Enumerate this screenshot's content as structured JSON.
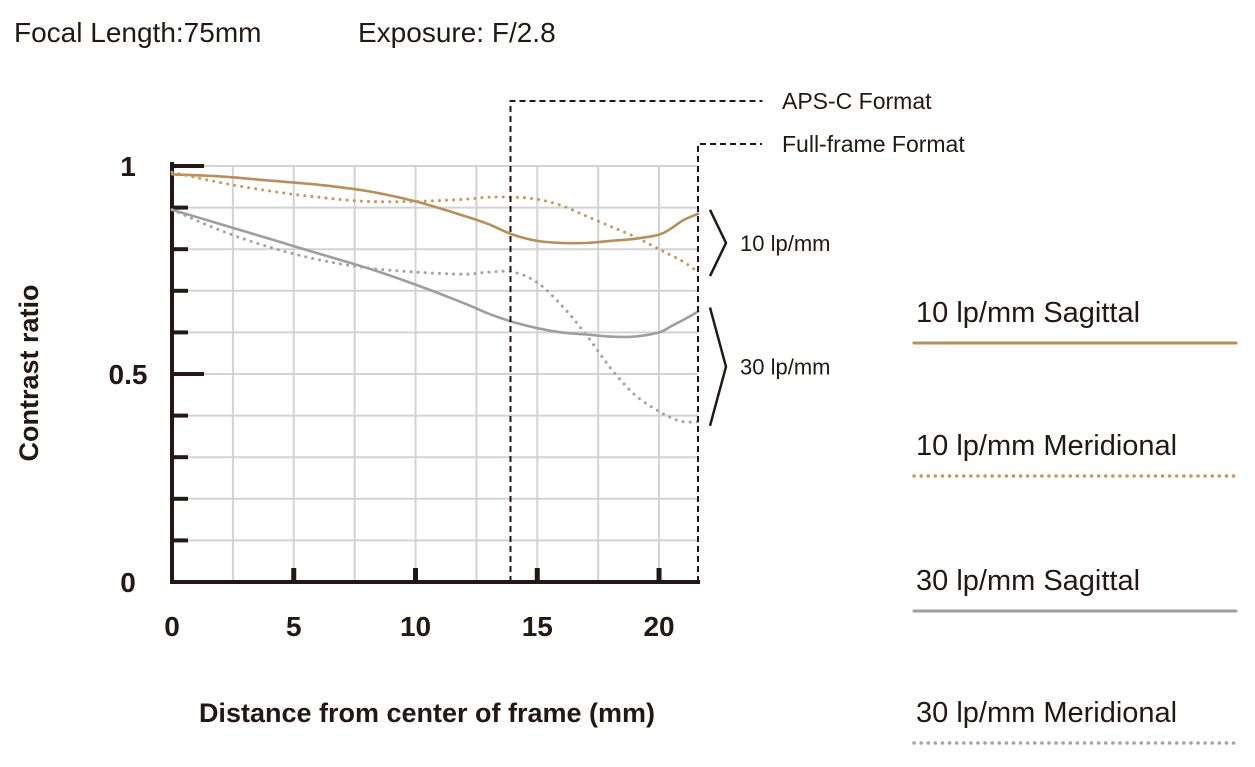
{
  "header": {
    "focal_length": "Focal Length:75mm",
    "exposure": "Exposure: F/2.8"
  },
  "chart_data": {
    "type": "line",
    "xlabel": "Distance from center of frame (mm)",
    "ylabel": "Contrast ratio",
    "xlim": [
      0,
      21.6
    ],
    "ylim": [
      0,
      1
    ],
    "x_ticks": [
      0,
      5,
      10,
      15,
      20
    ],
    "x_tick_labels": [
      "0",
      "5",
      "10",
      "15",
      "20"
    ],
    "y_ticks": [
      0,
      0.5,
      1
    ],
    "y_tick_labels": [
      "0",
      "0.5",
      "1"
    ],
    "grid": true,
    "legend_position": "right",
    "series": [
      {
        "name": "10 lp/mm Sagittal",
        "style": "solid",
        "color": "#b88f5b",
        "x": [
          0,
          2,
          4,
          6,
          8,
          10,
          12,
          13,
          14,
          15,
          16,
          17,
          18,
          19,
          20,
          20.5,
          21,
          21.6
        ],
        "y": [
          0.98,
          0.975,
          0.965,
          0.955,
          0.94,
          0.915,
          0.88,
          0.86,
          0.835,
          0.82,
          0.815,
          0.815,
          0.82,
          0.825,
          0.835,
          0.85,
          0.87,
          0.885
        ]
      },
      {
        "name": "10 lp/mm Meridional",
        "style": "dotted",
        "color": "#c49a62",
        "x": [
          0,
          2,
          4,
          6,
          8,
          10,
          12,
          13,
          14,
          15,
          16,
          17,
          18,
          19,
          20,
          20.5,
          21,
          21.6
        ],
        "y": [
          0.985,
          0.96,
          0.94,
          0.925,
          0.915,
          0.915,
          0.92,
          0.925,
          0.925,
          0.92,
          0.905,
          0.88,
          0.855,
          0.83,
          0.8,
          0.785,
          0.77,
          0.745
        ]
      },
      {
        "name": "30 lp/mm Sagittal",
        "style": "solid",
        "color": "#9e9e9e",
        "x": [
          0,
          2,
          4,
          6,
          8,
          10,
          12,
          13,
          14,
          15,
          16,
          17,
          18,
          19,
          20,
          20.5,
          21,
          21.6
        ],
        "y": [
          0.895,
          0.86,
          0.825,
          0.79,
          0.755,
          0.715,
          0.67,
          0.645,
          0.625,
          0.61,
          0.6,
          0.595,
          0.59,
          0.59,
          0.6,
          0.615,
          0.63,
          0.65
        ]
      },
      {
        "name": "30 lp/mm Meridional",
        "style": "dotted",
        "color": "#a3a3a3",
        "x": [
          0,
          2,
          4,
          6,
          8,
          10,
          12,
          13,
          14,
          15,
          16,
          17,
          18,
          19,
          20,
          20.5,
          21,
          21.6
        ],
        "y": [
          0.895,
          0.845,
          0.805,
          0.775,
          0.755,
          0.745,
          0.74,
          0.745,
          0.745,
          0.72,
          0.665,
          0.595,
          0.515,
          0.45,
          0.41,
          0.395,
          0.385,
          0.385
        ]
      }
    ],
    "format_markers": [
      {
        "label": "APS-C Format",
        "x": 13.9
      },
      {
        "label": "Full-frame Format",
        "x": 21.6
      }
    ],
    "group_labels": [
      {
        "label": "10 lp/mm",
        "y_range": [
          0.745,
          0.885
        ]
      },
      {
        "label": "30 lp/mm",
        "y_range": [
          0.385,
          0.65
        ]
      }
    ],
    "legend": [
      {
        "label": "10 lp/mm Sagittal",
        "style": "solid",
        "color": "#b88f5b"
      },
      {
        "label": "10 lp/mm Meridional",
        "style": "dotted",
        "color": "#c49a62"
      },
      {
        "label": "30 lp/mm Sagittal",
        "style": "solid",
        "color": "#9e9e9e"
      },
      {
        "label": "30 lp/mm Meridional",
        "style": "dotted",
        "color": "#a3a3a3"
      }
    ]
  }
}
